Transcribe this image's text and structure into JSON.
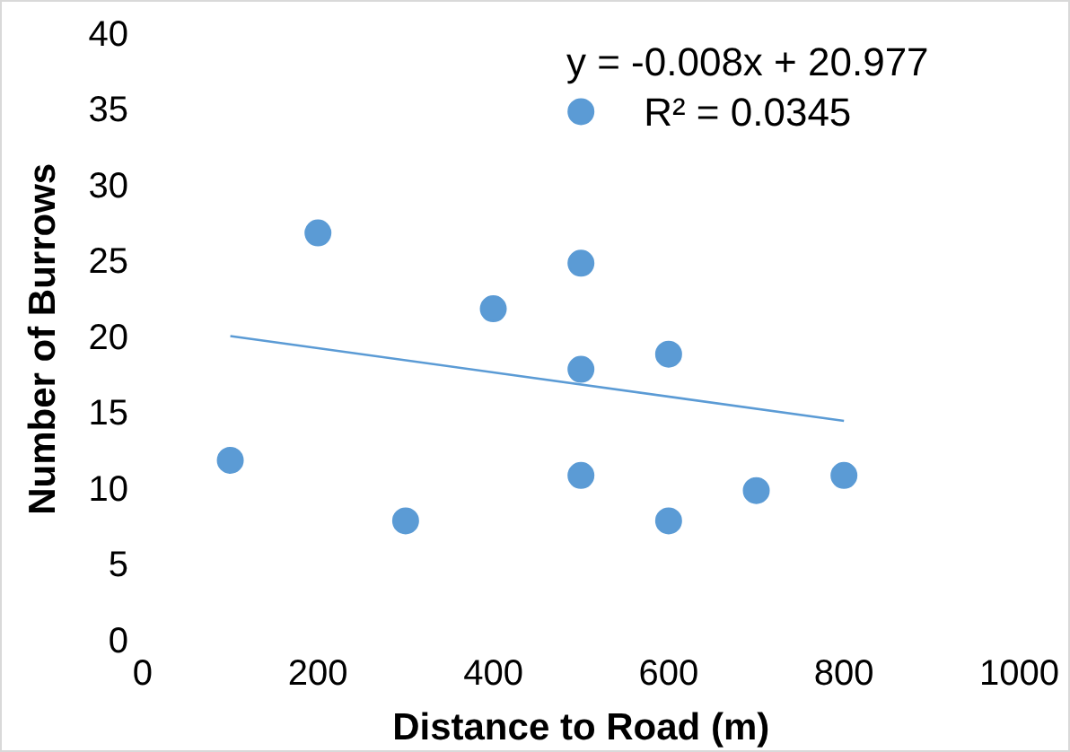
{
  "chart_data": {
    "type": "scatter",
    "xlabel": "Distance to Road (m)",
    "ylabel": "Number of Burrows",
    "xlim": [
      0,
      1000
    ],
    "xticks": [
      0,
      200,
      400,
      600,
      800,
      1000
    ],
    "ylim": [
      0,
      40
    ],
    "yticks": [
      0,
      5,
      10,
      15,
      20,
      25,
      30,
      35,
      40
    ],
    "grid": false,
    "legend": false,
    "series": [
      {
        "color": "#5b9bd5",
        "marker": "circle",
        "x": [
          100,
          200,
          300,
          400,
          500,
          500,
          500,
          500,
          600,
          600,
          700,
          800
        ],
        "values": [
          12,
          27,
          8,
          22,
          35,
          25,
          18,
          11,
          19,
          8,
          10,
          11
        ]
      },
      {
        "type": "line",
        "marker": "none",
        "color": "#5b9bd5",
        "x": [
          100,
          800
        ],
        "values": [
          20.2,
          14.6
        ]
      }
    ],
    "annotations": [
      "y = -0.008x + 20.977",
      "R² = 0.0345"
    ]
  }
}
